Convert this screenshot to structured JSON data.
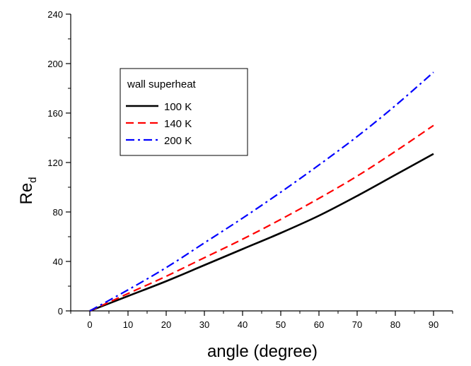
{
  "chart_data": {
    "type": "line",
    "xlabel": "angle (degree)",
    "ylabel_main": "Re",
    "ylabel_sub": "d",
    "xlim": [
      -5,
      95
    ],
    "ylim": [
      0,
      240
    ],
    "xticks": [
      0,
      10,
      20,
      30,
      40,
      50,
      60,
      70,
      80,
      90
    ],
    "yticks": [
      0,
      40,
      80,
      120,
      160,
      200,
      240
    ],
    "legend": {
      "title": "wall superheat",
      "placement": "upper-left"
    },
    "series": [
      {
        "name": "100 K",
        "color": "#000000",
        "style": "solid",
        "x": [
          0,
          10,
          20,
          30,
          40,
          50,
          60,
          70,
          80,
          90
        ],
        "y": [
          0,
          12,
          24,
          37,
          50,
          63,
          77,
          93,
          110,
          127
        ]
      },
      {
        "name": "140 K",
        "color": "#ff0000",
        "style": "dashed",
        "x": [
          0,
          10,
          20,
          30,
          40,
          50,
          60,
          70,
          80,
          90
        ],
        "y": [
          0,
          14,
          28,
          43,
          58,
          74,
          91,
          109,
          129,
          150
        ]
      },
      {
        "name": "200 K",
        "color": "#0000ff",
        "style": "dashdot",
        "x": [
          0,
          10,
          20,
          30,
          40,
          50,
          60,
          70,
          80,
          90
        ],
        "y": [
          0,
          17,
          35,
          55,
          75,
          96,
          118,
          141,
          166,
          193
        ]
      }
    ]
  }
}
